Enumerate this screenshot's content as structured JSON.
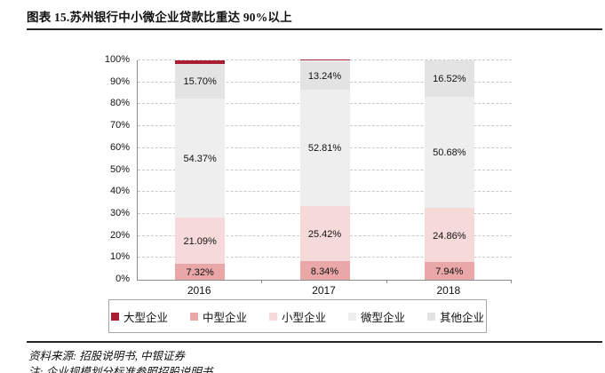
{
  "page": {
    "title": "图表 15.苏州银行中小微企业贷款比重达 90%以上",
    "source": "资料来源: 招股说明书, 中银证券",
    "note": "注: 企业规模划分标准参照招股说明书"
  },
  "chart_data": {
    "type": "bar",
    "stacked": true,
    "title": "图表 15.苏州银行中小微企业贷款比重达 90%以上",
    "categories": [
      "2016",
      "2017",
      "2018"
    ],
    "series": [
      {
        "name": "中型企业",
        "color": "#E9A7A7",
        "values": [
          7.32,
          8.34,
          7.94
        ],
        "show_labels": true
      },
      {
        "name": "小型企业",
        "color": "#F6D9D9",
        "values": [
          21.09,
          25.42,
          24.86
        ],
        "show_labels": true
      },
      {
        "name": "微型企业",
        "color": "#EFEEEE",
        "values": [
          54.37,
          52.81,
          50.68
        ],
        "show_labels": true
      },
      {
        "name": "其他企业",
        "color": "#E4E3E3",
        "values": [
          15.7,
          13.24,
          16.52
        ],
        "show_labels": true
      },
      {
        "name": "大型企业",
        "color": "#A91C31",
        "values": [
          1.52,
          0.19,
          0.0
        ],
        "show_labels": false
      }
    ],
    "legend": [
      {
        "name": "大型企业",
        "color": "#A91C31"
      },
      {
        "name": "中型企业",
        "color": "#E9A7A7"
      },
      {
        "name": "小型企业",
        "color": "#F6D9D9"
      },
      {
        "name": "微型企业",
        "color": "#EFEEEE"
      },
      {
        "name": "其他企业",
        "color": "#E4E3E3"
      }
    ],
    "legend_position": "bottom",
    "grid": true,
    "xlabel": "",
    "ylabel": "",
    "ylim": [
      0,
      100
    ],
    "y_axis": {
      "ticks": [
        "0%",
        "10%",
        "20%",
        "30%",
        "40%",
        "50%",
        "60%",
        "70%",
        "80%",
        "90%",
        "100%"
      ],
      "min": 0,
      "max": 100,
      "step": 10
    },
    "colors": {
      "axis": "#8c8c8c",
      "gridline": "#c9c9c9",
      "label_text": "#111111",
      "accent_red": "#A91C31"
    }
  }
}
